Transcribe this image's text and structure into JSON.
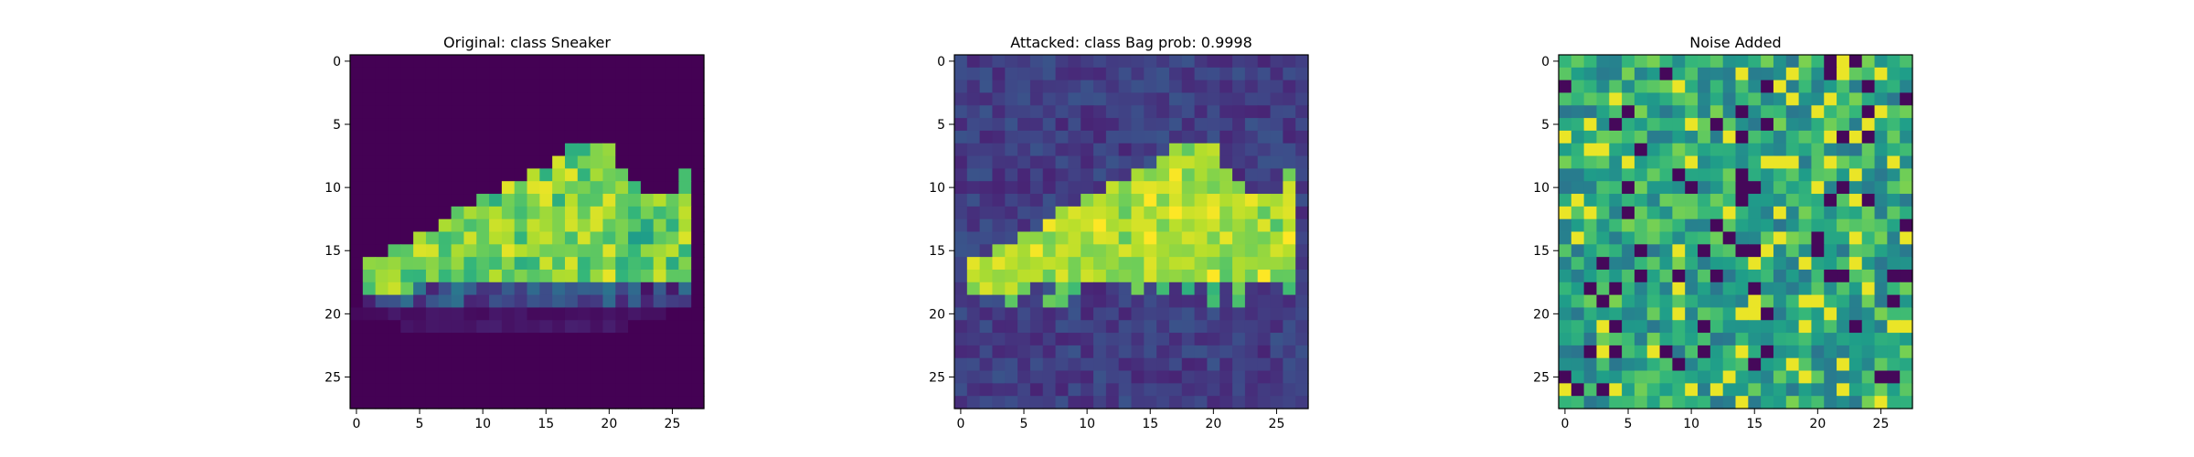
{
  "chart_data": [
    {
      "type": "heatmap",
      "title": "Original: class Sneaker",
      "xlim": [
        -0.5,
        27.5
      ],
      "ylim": [
        27.5,
        -0.5
      ],
      "xticks": [
        0,
        5,
        10,
        15,
        20,
        25
      ],
      "yticks": [
        0,
        5,
        10,
        15,
        20,
        25
      ],
      "colormap": "viridis",
      "grid": false,
      "image": "sneaker"
    },
    {
      "type": "heatmap",
      "title": "Attacked: class Bag prob: 0.9998",
      "xlim": [
        -0.5,
        27.5
      ],
      "ylim": [
        27.5,
        -0.5
      ],
      "xticks": [
        0,
        5,
        10,
        15,
        20,
        25
      ],
      "yticks": [
        0,
        5,
        10,
        15,
        20,
        25
      ],
      "colormap": "viridis",
      "grid": false,
      "image": "sneaker + noise"
    },
    {
      "type": "heatmap",
      "title": "Noise Added",
      "xlim": [
        -0.5,
        27.5
      ],
      "ylim": [
        27.5,
        -0.5
      ],
      "xticks": [
        0,
        5,
        10,
        15,
        20,
        25
      ],
      "yticks": [
        0,
        5,
        10,
        15,
        20,
        25
      ],
      "colormap": "viridis",
      "grid": false,
      "image": "random noise"
    }
  ],
  "colors": {
    "viridis_0": "#440154",
    "viridis_25": "#3b528b",
    "viridis_50": "#21918c",
    "viridis_75": "#5ec962",
    "viridis_100": "#fde725"
  }
}
